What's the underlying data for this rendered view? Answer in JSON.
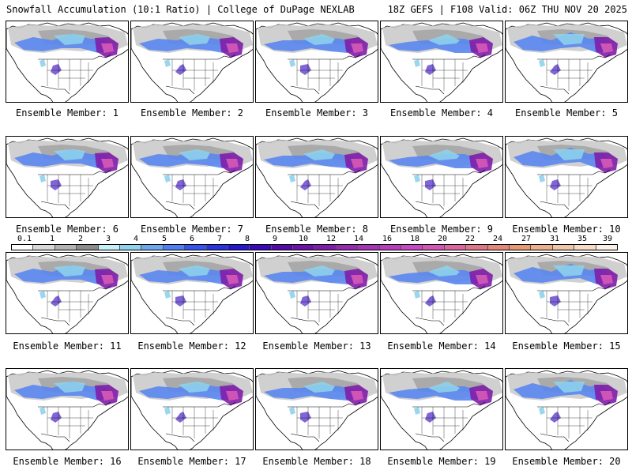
{
  "header": {
    "title_left": "Snowfall Accumulation (10:1 Ratio) | College of DuPage NEXLAB",
    "title_right": "18Z GEFS | F108 Valid: 06Z THU NOV 20 2025"
  },
  "member_prefix": "Ensemble Member: ",
  "members": [
    {
      "label": "Ensemble Member: 1"
    },
    {
      "label": "Ensemble Member: 2"
    },
    {
      "label": "Ensemble Member: 3"
    },
    {
      "label": "Ensemble Member: 4"
    },
    {
      "label": "Ensemble Member: 5"
    },
    {
      "label": "Ensemble Member: 6"
    },
    {
      "label": "Ensemble Member: 7"
    },
    {
      "label": "Ensemble Member: 8"
    },
    {
      "label": "Ensemble Member: 9"
    },
    {
      "label": "Ensemble Member: 10"
    },
    {
      "label": "Ensemble Member: 11"
    },
    {
      "label": "Ensemble Member: 12"
    },
    {
      "label": "Ensemble Member: 13"
    },
    {
      "label": "Ensemble Member: 14"
    },
    {
      "label": "Ensemble Member: 15"
    },
    {
      "label": "Ensemble Member: 16"
    },
    {
      "label": "Ensemble Member: 17"
    },
    {
      "label": "Ensemble Member: 18"
    },
    {
      "label": "Ensemble Member: 19"
    },
    {
      "label": "Ensemble Member: 20"
    }
  ],
  "colorbar": {
    "ticks": [
      "0.1",
      "1",
      "2",
      "3",
      "4",
      "5",
      "6",
      "7",
      "8",
      "9",
      "10",
      "12",
      "14",
      "16",
      "18",
      "20",
      "22",
      "24",
      "27",
      "31",
      "35",
      "39"
    ],
    "colors": [
      "#ffffff",
      "#d9d9d9",
      "#b3b3b3",
      "#8c8c8c",
      "#c5f0f7",
      "#8fd3ec",
      "#6aa9f0",
      "#4f7ff0",
      "#3355ee",
      "#2a33e0",
      "#2417cf",
      "#3a08b8",
      "#550aa8",
      "#6c12a8",
      "#7f1da8",
      "#932ab0",
      "#a632b6",
      "#b83dbd",
      "#c847c2",
      "#d356b6",
      "#d9669f",
      "#df7688",
      "#e38778",
      "#e79a70",
      "#ebb08a",
      "#f0c6a6",
      "#f5dcc6",
      "#faf0e6"
    ]
  }
}
